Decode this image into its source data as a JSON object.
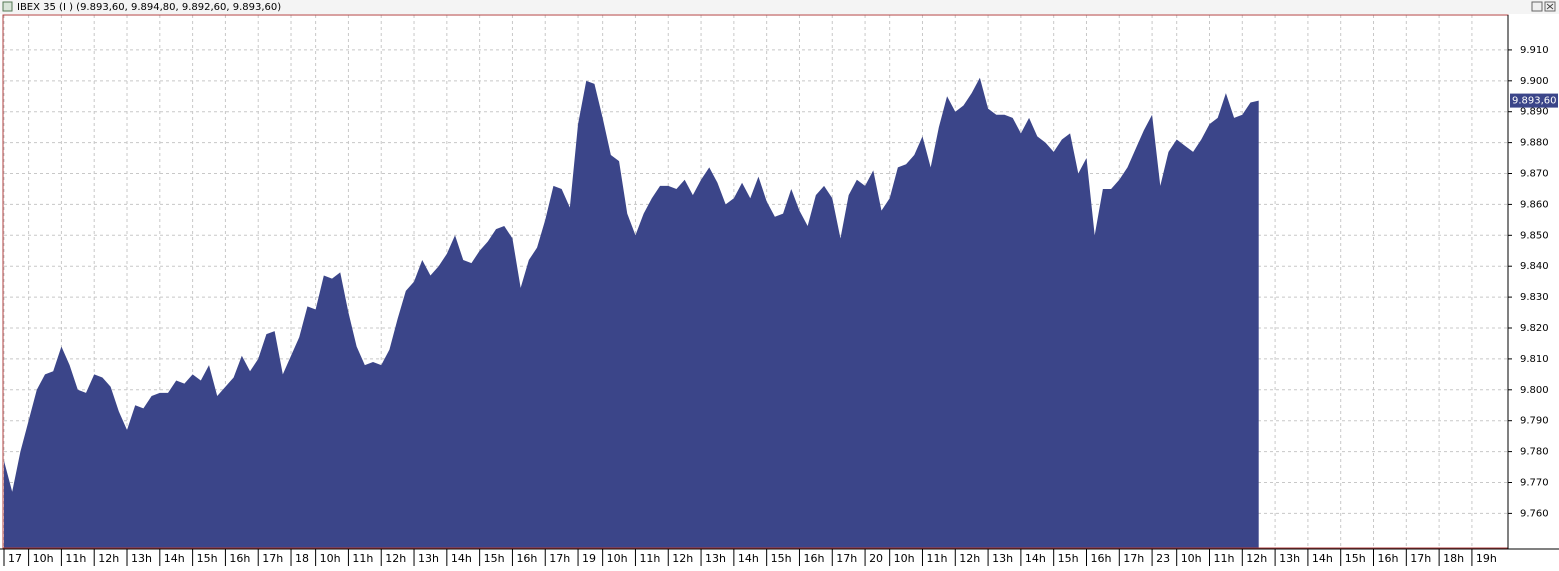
{
  "chart_data": {
    "type": "area",
    "title": "IBEX 35 (I ) (9.893,60, 9.894,80, 9.892,60, 9.893,60)",
    "color": "#3b4589",
    "grid": true,
    "xlim": [
      0,
      183.4
    ],
    "ylim": [
      9748.8,
      9921.3
    ],
    "yticks": [
      {
        "value": 9760,
        "label": "9.760"
      },
      {
        "value": 9770,
        "label": "9.770"
      },
      {
        "value": 9780,
        "label": "9.780"
      },
      {
        "value": 9790,
        "label": "9.790"
      },
      {
        "value": 9800,
        "label": "9.800"
      },
      {
        "value": 9810,
        "label": "9.810"
      },
      {
        "value": 9820,
        "label": "9.820"
      },
      {
        "value": 9830,
        "label": "9.830"
      },
      {
        "value": 9840,
        "label": "9.840"
      },
      {
        "value": 9850,
        "label": "9.850"
      },
      {
        "value": 9860,
        "label": "9.860"
      },
      {
        "value": 9870,
        "label": "9.870"
      },
      {
        "value": 9880,
        "label": "9.880"
      },
      {
        "value": 9890,
        "label": "9.890"
      },
      {
        "value": 9900,
        "label": "9.900"
      },
      {
        "value": 9910,
        "label": "9.910"
      }
    ],
    "xticks": [
      {
        "value": 0,
        "label": "17"
      },
      {
        "value": 3,
        "label": "10h"
      },
      {
        "value": 7,
        "label": "11h"
      },
      {
        "value": 11,
        "label": "12h"
      },
      {
        "value": 15,
        "label": "13h"
      },
      {
        "value": 19,
        "label": "14h"
      },
      {
        "value": 23,
        "label": "15h"
      },
      {
        "value": 27,
        "label": "16h"
      },
      {
        "value": 31,
        "label": "17h"
      },
      {
        "value": 35,
        "label": "18"
      },
      {
        "value": 38,
        "label": "10h"
      },
      {
        "value": 42,
        "label": "11h"
      },
      {
        "value": 46,
        "label": "12h"
      },
      {
        "value": 50,
        "label": "13h"
      },
      {
        "value": 54,
        "label": "14h"
      },
      {
        "value": 58,
        "label": "15h"
      },
      {
        "value": 62,
        "label": "16h"
      },
      {
        "value": 66,
        "label": "17h"
      },
      {
        "value": 70,
        "label": "19"
      },
      {
        "value": 73,
        "label": "10h"
      },
      {
        "value": 77,
        "label": "11h"
      },
      {
        "value": 81,
        "label": "12h"
      },
      {
        "value": 85,
        "label": "13h"
      },
      {
        "value": 89,
        "label": "14h"
      },
      {
        "value": 93,
        "label": "15h"
      },
      {
        "value": 97,
        "label": "16h"
      },
      {
        "value": 101,
        "label": "17h"
      },
      {
        "value": 105,
        "label": "20"
      },
      {
        "value": 108,
        "label": "10h"
      },
      {
        "value": 112,
        "label": "11h"
      },
      {
        "value": 116,
        "label": "12h"
      },
      {
        "value": 120,
        "label": "13h"
      },
      {
        "value": 124,
        "label": "14h"
      },
      {
        "value": 128,
        "label": "15h"
      },
      {
        "value": 132,
        "label": "16h"
      },
      {
        "value": 136,
        "label": "17h"
      },
      {
        "value": 140,
        "label": "23"
      },
      {
        "value": 143,
        "label": "10h"
      },
      {
        "value": 147,
        "label": "11h"
      },
      {
        "value": 151,
        "label": "12h"
      },
      {
        "value": 155,
        "label": "13h"
      },
      {
        "value": 159,
        "label": "14h"
      },
      {
        "value": 163,
        "label": "15h"
      },
      {
        "value": 167,
        "label": "16h"
      },
      {
        "value": 171,
        "label": "17h"
      },
      {
        "value": 175,
        "label": "18h"
      },
      {
        "value": 179,
        "label": "19h"
      }
    ],
    "price_label": {
      "value": 9893.6,
      "label": "9.893,60"
    },
    "series": [
      {
        "name": "IBEX 35",
        "x": [
          0,
          1,
          2,
          3,
          4,
          5,
          6,
          7,
          8,
          9,
          10,
          11,
          12,
          13,
          14,
          15,
          16,
          17,
          18,
          19,
          20,
          21,
          22,
          23,
          24,
          25,
          26,
          27,
          28,
          29,
          30,
          31,
          32,
          33,
          34,
          35,
          36,
          37,
          38,
          39,
          40,
          41,
          42,
          43,
          44,
          45,
          46,
          47,
          48,
          49,
          50,
          51,
          52,
          53,
          54,
          55,
          56,
          57,
          58,
          59,
          60,
          61,
          62,
          63,
          64,
          65,
          66,
          67,
          68,
          69,
          70,
          71,
          72,
          73,
          74,
          75,
          76,
          77,
          78,
          79,
          80,
          81,
          82,
          83,
          84,
          85,
          86,
          87,
          88,
          89,
          90,
          91,
          92,
          93,
          94,
          95,
          96,
          97,
          98,
          99,
          100,
          101,
          102,
          103,
          104,
          105,
          106,
          107,
          108,
          109,
          110,
          111,
          112,
          113,
          114,
          115,
          116,
          117,
          118,
          119,
          120,
          121,
          122,
          123,
          124,
          125,
          126,
          127,
          128,
          129,
          130,
          131,
          132,
          133,
          134,
          135,
          136,
          137,
          138,
          139,
          140,
          141,
          142,
          143,
          144,
          145,
          146,
          147,
          148,
          149,
          150,
          151,
          152,
          153
        ],
        "values": [
          9777,
          9767,
          9780,
          9790,
          9800,
          9805,
          9806,
          9814,
          9808,
          9800,
          9799,
          9805,
          9804,
          9801,
          9793,
          9787,
          9795,
          9794,
          9798,
          9799,
          9799,
          9803,
          9802,
          9805,
          9803,
          9808,
          9798,
          9801,
          9804,
          9811,
          9806,
          9810,
          9818,
          9819,
          9805,
          9811,
          9817,
          9827,
          9826,
          9837,
          9836,
          9838,
          9825,
          9814,
          9808,
          9809,
          9808,
          9813,
          9823,
          9832,
          9835,
          9842,
          9837,
          9840,
          9844,
          9850,
          9842,
          9841,
          9845,
          9848,
          9852,
          9853,
          9849,
          9833,
          9842,
          9846,
          9855,
          9866,
          9865,
          9859,
          9886,
          9900,
          9899,
          9888,
          9876,
          9874,
          9857,
          9850,
          9857,
          9862,
          9866,
          9866,
          9865,
          9868,
          9863,
          9868,
          9872,
          9867,
          9860,
          9862,
          9867,
          9862,
          9869,
          9861,
          9856,
          9857,
          9865,
          9858,
          9853,
          9863,
          9866,
          9862,
          9849,
          9863,
          9868,
          9866,
          9871,
          9858,
          9862,
          9872,
          9873,
          9876,
          9882,
          9872,
          9885,
          9895,
          9890,
          9892,
          9896,
          9901,
          9891,
          9889,
          9889,
          9888,
          9883,
          9888,
          9882,
          9880,
          9877,
          9881,
          9883,
          9870,
          9875,
          9850,
          9865,
          9865,
          9868,
          9872,
          9878,
          9884,
          9889,
          9866,
          9877,
          9881,
          9879,
          9877,
          9881,
          9886,
          9888,
          9896,
          9888,
          9889,
          9893,
          9893.6
        ]
      }
    ]
  }
}
